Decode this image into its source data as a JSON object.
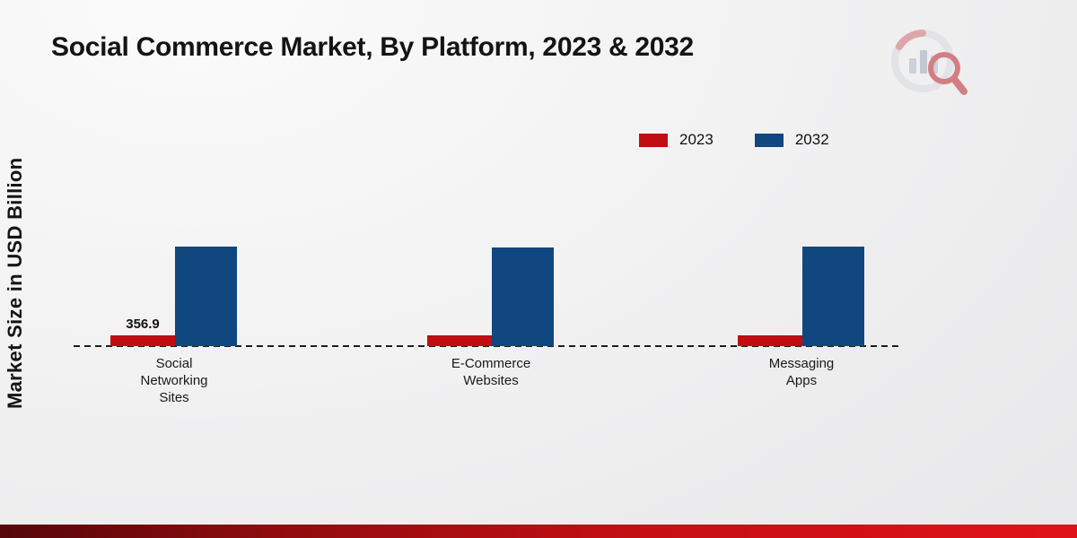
{
  "page": {
    "title": "Social Commerce Market, By Platform, 2023 & 2032",
    "y_axis_label": "Market Size in USD Billion"
  },
  "legend": {
    "items": [
      {
        "label": "2023",
        "color": "#c00d12"
      },
      {
        "label": "2032",
        "color": "#10477e"
      }
    ]
  },
  "chart_data": {
    "type": "bar",
    "title": "Social Commerce Market, By Platform, 2023 & 2032",
    "ylabel": "Market Size in USD Billion",
    "categories": [
      "Social Networking Sites",
      "E-Commerce Websites",
      "Messaging Apps"
    ],
    "series": [
      {
        "name": "2023",
        "color": "#c00d12",
        "values": [
          356.9,
          350,
          350
        ],
        "value_labels": [
          "356.9",
          "",
          ""
        ]
      },
      {
        "name": "2032",
        "color": "#10477e",
        "values": [
          3300,
          3270,
          3290
        ],
        "value_labels": [
          "",
          "",
          ""
        ]
      }
    ],
    "ylim": [
      0,
      7000
    ],
    "grid": false,
    "baseline_style": "dashed",
    "legend_position": "top-right"
  },
  "branding": {
    "logo_icon": "bar-chart-magnifier-logo-icon",
    "accent_red": "#c00d12"
  }
}
